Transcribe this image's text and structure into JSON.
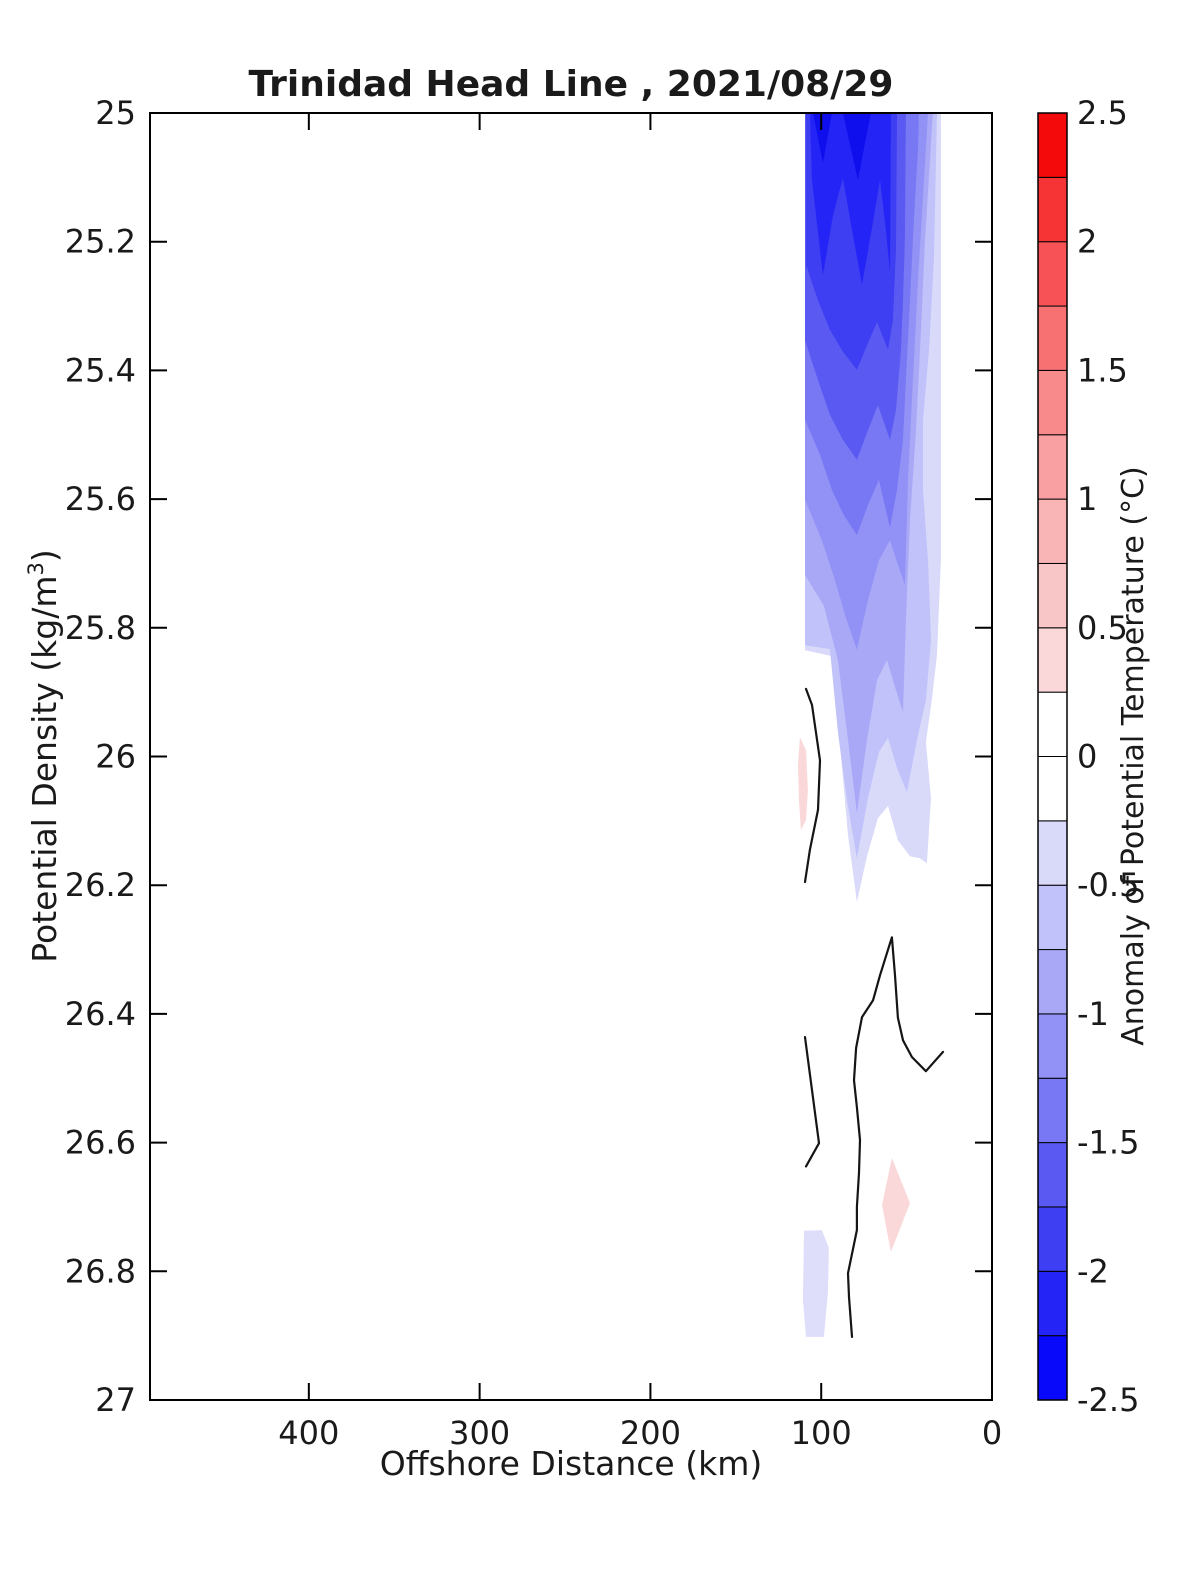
{
  "figure": {
    "title": "Trinidad Head Line , 2021/08/29"
  },
  "chart_data": {
    "type": "filled-contour",
    "title": "Trinidad Head Line , 2021/08/29",
    "xlabel": "Offshore Distance (km)",
    "ylabel": "Potential Density (kg/m³)",
    "ylabel_parts": {
      "main": "Potential Density (kg/m",
      "sup": "3",
      "end": ")"
    },
    "x_axis": {
      "reversed": true,
      "range_km": [
        493,
        0
      ],
      "tick_values": [
        400,
        300,
        200,
        100,
        0
      ],
      "tick_labels": [
        "400",
        "300",
        "200",
        "100",
        "0"
      ]
    },
    "y_axis": {
      "increasing_downward": true,
      "range": [
        25,
        27
      ],
      "tick_values": [
        25,
        25.2,
        25.4,
        25.6,
        25.8,
        26,
        26.2,
        26.4,
        26.6,
        26.8,
        27
      ],
      "tick_labels": [
        "25",
        "25.2",
        "25.4",
        "25.6",
        "25.8",
        "26",
        "26.2",
        "26.4",
        "26.6",
        "26.8",
        "27"
      ]
    },
    "colorbar": {
      "label": "Anomaly of Potential Temperature (°C)",
      "range": [
        -2.5,
        2.5
      ],
      "segment_step": 0.25,
      "tick_values": [
        -2.5,
        -2,
        -1.5,
        -1,
        -0.5,
        0,
        0.5,
        1,
        1.5,
        2,
        2.5
      ],
      "tick_labels": [
        "-2.5",
        "-2",
        "-1.5",
        "-1",
        "-0.5",
        "0",
        "0.5",
        "1",
        "1.5",
        "2",
        "2.5"
      ],
      "colors_bottom_to_top": [
        "#0808FA",
        "#2424F6",
        "#3E3EF2",
        "#5A5AF2",
        "#7878F4",
        "#9292F6",
        "#A8A8F7",
        "#C0C2F9",
        "#D9D9FA",
        "#FFFFFF",
        "#FFFFFF",
        "#FAD7D8",
        "#F9C6C8",
        "#F9B4B6",
        "#F8A0A2",
        "#F88A8C",
        "#F77173",
        "#F75356",
        "#F63335",
        "#F50A0C"
      ]
    },
    "filled_regions": [
      {
        "name": "cold-band-level-0.25",
        "level_range": "-0.5 to -0.25",
        "color": "#D9D9FA",
        "points": [
          [
            109.5,
            25.0
          ],
          [
            109.5,
            25.835
          ],
          [
            93.7,
            25.844
          ],
          [
            89.0,
            25.982
          ],
          [
            84.3,
            26.122
          ],
          [
            79.1,
            26.226
          ],
          [
            73.2,
            26.155
          ],
          [
            66.8,
            26.096
          ],
          [
            60.9,
            26.077
          ],
          [
            55.1,
            26.13
          ],
          [
            48.0,
            26.155
          ],
          [
            42.2,
            26.158
          ],
          [
            38.1,
            26.166
          ],
          [
            35.7,
            26.065
          ],
          [
            38.7,
            25.978
          ],
          [
            35.1,
            25.909
          ],
          [
            32.2,
            25.842
          ],
          [
            29.9,
            25.695
          ],
          [
            29.9,
            25.477
          ],
          [
            29.9,
            25.0
          ]
        ]
      },
      {
        "name": "cold-band-level-0.5",
        "level_range": "-0.75 to -0.5",
        "color": "#C0C2F9",
        "points": [
          [
            109.5,
            25.0
          ],
          [
            109.5,
            25.827
          ],
          [
            94.9,
            25.833
          ],
          [
            90.2,
            25.962
          ],
          [
            84.9,
            26.068
          ],
          [
            79.1,
            26.158
          ],
          [
            72.6,
            26.064
          ],
          [
            66.2,
            25.993
          ],
          [
            60.9,
            25.971
          ],
          [
            55.6,
            26.018
          ],
          [
            49.8,
            26.055
          ],
          [
            43.9,
            25.974
          ],
          [
            38.7,
            25.912
          ],
          [
            35.7,
            25.819
          ],
          [
            37.5,
            25.695
          ],
          [
            40.4,
            25.586
          ],
          [
            40.4,
            25.477
          ],
          [
            36.9,
            25.368
          ],
          [
            34.0,
            25.228
          ],
          [
            32.2,
            25.0
          ]
        ]
      },
      {
        "name": "cold-band-level-0.75",
        "level_range": "-1 to -0.75",
        "color": "#A8A8F7",
        "points": [
          [
            109.5,
            25.0
          ],
          [
            109.5,
            25.718
          ],
          [
            98.4,
            25.766
          ],
          [
            90.2,
            25.85
          ],
          [
            84.3,
            25.974
          ],
          [
            79.1,
            26.088
          ],
          [
            73.2,
            25.974
          ],
          [
            67.3,
            25.881
          ],
          [
            61.5,
            25.85
          ],
          [
            56.2,
            25.897
          ],
          [
            52.1,
            25.931
          ],
          [
            50.4,
            25.788
          ],
          [
            48.0,
            25.632
          ],
          [
            44.5,
            25.493
          ],
          [
            41.6,
            25.337
          ],
          [
            39.2,
            25.197
          ],
          [
            36.3,
            25.073
          ],
          [
            34.6,
            25.0
          ]
        ]
      },
      {
        "name": "cold-band-level-1",
        "level_range": "-1.25 to -1",
        "color": "#9292F6",
        "points": [
          [
            109.5,
            25.0
          ],
          [
            109.5,
            25.601
          ],
          [
            99.6,
            25.664
          ],
          [
            91.9,
            25.726
          ],
          [
            85.5,
            25.785
          ],
          [
            79.1,
            25.834
          ],
          [
            72.6,
            25.757
          ],
          [
            66.2,
            25.695
          ],
          [
            59.7,
            25.664
          ],
          [
            55.1,
            25.702
          ],
          [
            51.0,
            25.733
          ],
          [
            49.2,
            25.57
          ],
          [
            46.3,
            25.415
          ],
          [
            43.3,
            25.26
          ],
          [
            39.8,
            25.104
          ],
          [
            37.5,
            25.0
          ]
        ]
      },
      {
        "name": "cold-band-level-1.25",
        "level_range": "-1.5 to -1.25",
        "color": "#7878F4",
        "points": [
          [
            109.5,
            25.0
          ],
          [
            109.5,
            25.477
          ],
          [
            100.7,
            25.531
          ],
          [
            93.7,
            25.586
          ],
          [
            86.7,
            25.625
          ],
          [
            79.1,
            25.656
          ],
          [
            72.6,
            25.609
          ],
          [
            66.2,
            25.57
          ],
          [
            59.7,
            25.645
          ],
          [
            55.6,
            25.586
          ],
          [
            52.1,
            25.508
          ],
          [
            50.4,
            25.415
          ],
          [
            48.0,
            25.291
          ],
          [
            45.7,
            25.166
          ],
          [
            43.3,
            25.057
          ],
          [
            42.8,
            25.0
          ]
        ]
      },
      {
        "name": "cold-band-level-1.5",
        "level_range": "-1.75 to -1.5",
        "color": "#5A5AF2",
        "points": [
          [
            109.5,
            25.0
          ],
          [
            109.5,
            25.353
          ],
          [
            101.9,
            25.415
          ],
          [
            94.9,
            25.469
          ],
          [
            87.3,
            25.508
          ],
          [
            79.1,
            25.539
          ],
          [
            72.6,
            25.493
          ],
          [
            66.8,
            25.454
          ],
          [
            59.7,
            25.508
          ],
          [
            56.2,
            25.462
          ],
          [
            53.3,
            25.368
          ],
          [
            52.1,
            25.291
          ],
          [
            51.0,
            25.197
          ],
          [
            50.4,
            25.0
          ]
        ]
      },
      {
        "name": "cold-band-level-1.75",
        "level_range": "-2 to -1.75",
        "color": "#3E3EF2",
        "points": [
          [
            108.9,
            25.0
          ],
          [
            108.9,
            25.236
          ],
          [
            101.9,
            25.291
          ],
          [
            94.9,
            25.337
          ],
          [
            87.3,
            25.371
          ],
          [
            79.1,
            25.399
          ],
          [
            73.2,
            25.361
          ],
          [
            67.3,
            25.325
          ],
          [
            60.9,
            25.368
          ],
          [
            58.0,
            25.322
          ],
          [
            56.2,
            25.213
          ],
          [
            55.6,
            25.0
          ]
        ]
      },
      {
        "name": "cold-band-level-2",
        "level_range": "-2.25 to -2",
        "color": "#2424F6",
        "points": [
          [
            106.6,
            25.0
          ],
          [
            105.4,
            25.104
          ],
          [
            99.0,
            25.252
          ],
          [
            93.1,
            25.159
          ],
          [
            87.3,
            25.101
          ],
          [
            82.0,
            25.182
          ],
          [
            76.1,
            25.267
          ],
          [
            70.3,
            25.179
          ],
          [
            65.6,
            25.104
          ],
          [
            62.1,
            25.182
          ],
          [
            59.7,
            25.247
          ],
          [
            59.2,
            25.0
          ]
        ]
      },
      {
        "name": "cold-core-a",
        "level_range": "-2.5 to -2.25",
        "color": "#0F0FEE",
        "points": [
          [
            104.8,
            25.0
          ],
          [
            99.0,
            25.078
          ],
          [
            93.7,
            25.0
          ]
        ]
      },
      {
        "name": "cold-core-b",
        "level_range": "-2.5 to -2.25",
        "color": "#0F0FEE",
        "points": [
          [
            87.3,
            25.0
          ],
          [
            78.5,
            25.104
          ],
          [
            70.9,
            25.0
          ]
        ]
      },
      {
        "name": "warm-sliver-26.0",
        "level_range": "0.25 to 0.5",
        "color": "#FAD7D8",
        "points": [
          [
            112.4,
            25.97
          ],
          [
            108.9,
            25.99
          ],
          [
            107.8,
            26.052
          ],
          [
            108.9,
            26.099
          ],
          [
            111.9,
            26.114
          ],
          [
            113.0,
            26.068
          ],
          [
            113.6,
            26.013
          ]
        ]
      },
      {
        "name": "warm-diamond-26.7",
        "level_range": "0.25 to 0.5",
        "color": "#FAD7D8",
        "points": [
          [
            58.6,
            26.624
          ],
          [
            48.0,
            26.694
          ],
          [
            59.2,
            26.77
          ],
          [
            64.4,
            26.697
          ]
        ]
      },
      {
        "name": "cool-patch-26.8",
        "level_range": "-0.5 to -0.25",
        "color": "#DEDEFB",
        "points": [
          [
            110.1,
            26.737
          ],
          [
            99.6,
            26.736
          ],
          [
            95.5,
            26.764
          ],
          [
            96.0,
            26.832
          ],
          [
            98.4,
            26.902
          ],
          [
            108.9,
            26.902
          ],
          [
            110.7,
            26.845
          ]
        ]
      }
    ],
    "zero_contour_lines": [
      {
        "name": "zero-contour-upper-left",
        "points": [
          [
            108.9,
            25.895
          ],
          [
            105.4,
            25.92
          ],
          [
            100.7,
            26.006
          ],
          [
            101.9,
            26.083
          ],
          [
            106.6,
            26.145
          ],
          [
            109.5,
            26.195
          ]
        ]
      },
      {
        "name": "zero-contour-mid-left",
        "points": [
          [
            109.5,
            26.436
          ],
          [
            101.3,
            26.601
          ],
          [
            108.9,
            26.637
          ]
        ]
      },
      {
        "name": "zero-contour-deep",
        "points": [
          [
            28.7,
            26.459
          ],
          [
            38.7,
            26.489
          ],
          [
            46.9,
            26.467
          ],
          [
            52.1,
            26.441
          ],
          [
            55.1,
            26.406
          ],
          [
            56.8,
            26.34
          ],
          [
            58.6,
            26.281
          ],
          [
            65.6,
            26.34
          ],
          [
            69.7,
            26.379
          ],
          [
            76.1,
            26.405
          ],
          [
            79.6,
            26.453
          ],
          [
            80.8,
            26.503
          ],
          [
            79.1,
            26.545
          ],
          [
            77.3,
            26.596
          ],
          [
            77.9,
            26.647
          ],
          [
            79.1,
            26.7
          ],
          [
            79.1,
            26.736
          ],
          [
            84.3,
            26.803
          ],
          [
            83.7,
            26.84
          ],
          [
            82.0,
            26.902
          ]
        ]
      }
    ]
  }
}
